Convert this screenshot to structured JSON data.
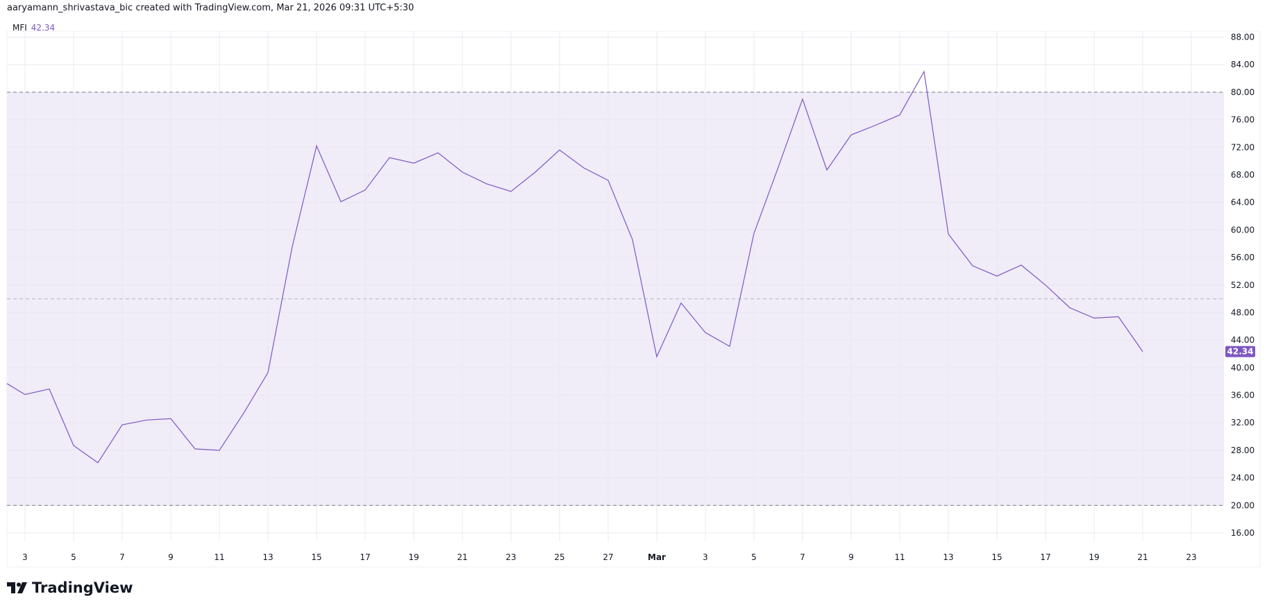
{
  "header": {
    "text": "aaryamann_shrivastava_bic created with TradingView.com, Mar 21, 2026 09:31 UTC+5:30"
  },
  "legend": {
    "name": "MFI",
    "value": "42.34"
  },
  "logo": {
    "text": "TradingView"
  },
  "colors": {
    "line": "#7e57c2",
    "band": "#f0ecf8",
    "grid": "#ebe8f0",
    "last_label_bg": "#7e57c2"
  },
  "chart_data": {
    "type": "line",
    "title": "",
    "series": [
      {
        "name": "MFI",
        "x": [
          "Feb 2",
          "Feb 3",
          "Feb 4",
          "Feb 5",
          "Feb 6",
          "Feb 7",
          "Feb 8",
          "Feb 9",
          "Feb 10",
          "Feb 11",
          "Feb 12",
          "Feb 13",
          "Feb 14",
          "Feb 15",
          "Feb 16",
          "Feb 17",
          "Feb 18",
          "Feb 19",
          "Feb 20",
          "Feb 21",
          "Feb 22",
          "Feb 23",
          "Feb 24",
          "Feb 25",
          "Feb 26",
          "Feb 27",
          "Feb 28",
          "Mar 1",
          "Mar 2",
          "Mar 3",
          "Mar 4",
          "Mar 5",
          "Mar 6",
          "Mar 7",
          "Mar 8",
          "Mar 9",
          "Mar 10",
          "Mar 11",
          "Mar 12",
          "Mar 13",
          "Mar 14",
          "Mar 15",
          "Mar 16",
          "Mar 17",
          "Mar 18",
          "Mar 19",
          "Mar 20",
          "Mar 21"
        ],
        "values": [
          37.7,
          36.1,
          36.9,
          28.7,
          26.2,
          31.7,
          32.4,
          32.6,
          28.2,
          28.0,
          33.4,
          39.3,
          57.6,
          72.2,
          64.1,
          65.8,
          70.5,
          69.7,
          71.2,
          68.4,
          66.7,
          65.6,
          68.4,
          71.6,
          69.0,
          67.2,
          58.6,
          41.6,
          49.4,
          45.1,
          43.1,
          59.5,
          69.1,
          79.0,
          68.7,
          73.8,
          75.2,
          76.7,
          83.0,
          59.4,
          54.8,
          53.3,
          54.9,
          52.0,
          48.7,
          47.2,
          47.4,
          42.34
        ]
      }
    ],
    "x_ticks": [
      "3",
      "5",
      "7",
      "9",
      "11",
      "13",
      "15",
      "17",
      "19",
      "21",
      "23",
      "25",
      "27",
      "Mar",
      "3",
      "5",
      "7",
      "9",
      "11",
      "13",
      "15",
      "17",
      "19",
      "21",
      "23"
    ],
    "y_ticks": [
      "16.00",
      "20.00",
      "24.00",
      "28.00",
      "32.00",
      "36.00",
      "40.00",
      "44.00",
      "48.00",
      "52.00",
      "56.00",
      "60.00",
      "64.00",
      "68.00",
      "72.00",
      "76.00",
      "80.00",
      "84.00",
      "88.00"
    ],
    "ylim": [
      14,
      90
    ],
    "bands": {
      "upper": 80,
      "middle": 50,
      "lower": 20
    },
    "last_value_label": "42.34",
    "grid": true,
    "y_axis_side": "right"
  }
}
